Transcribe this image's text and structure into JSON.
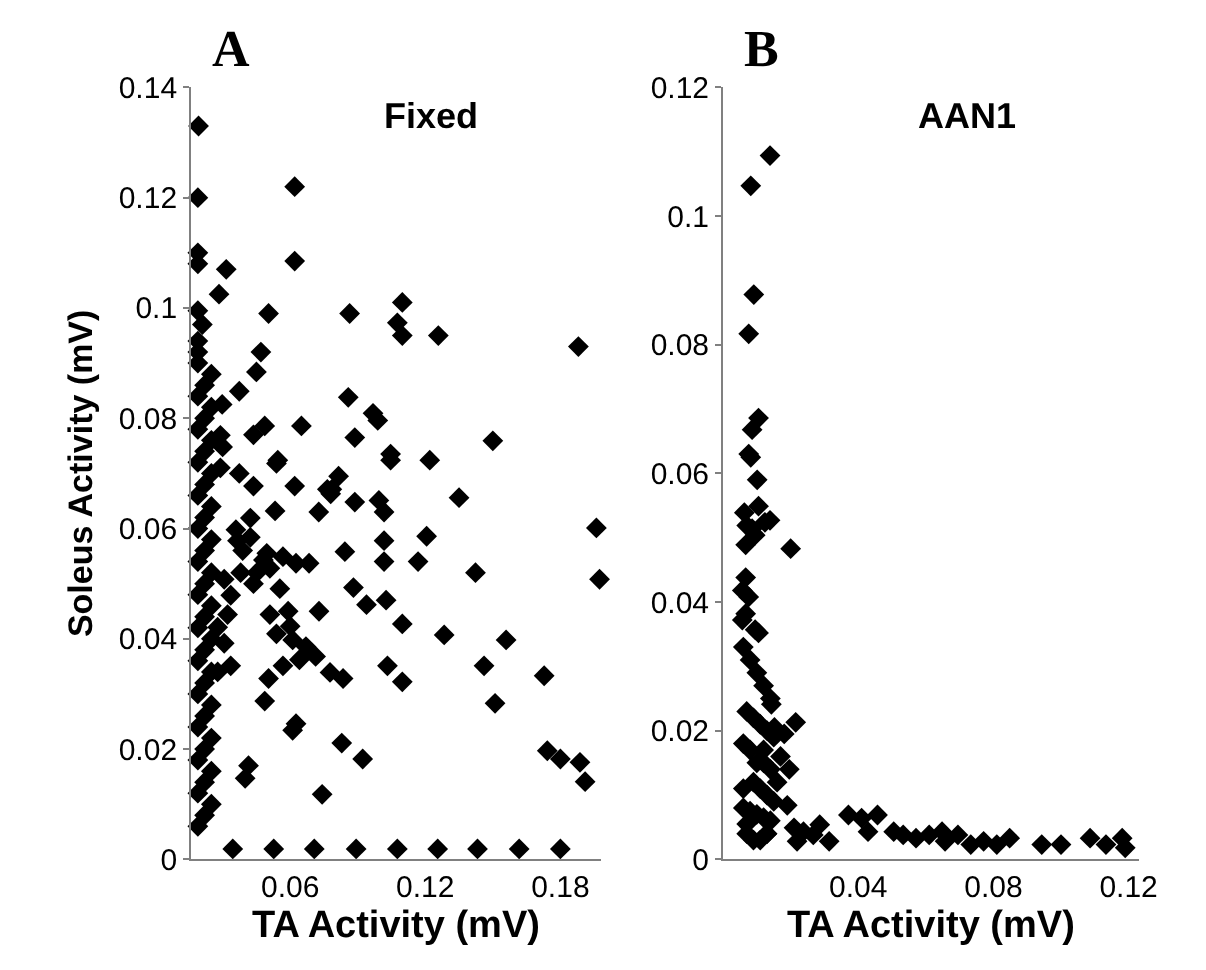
{
  "chart_data": [
    {
      "type": "scatter",
      "title": "Fixed",
      "annotations": [
        "A"
      ],
      "xlabel": "TA Activity (mV)",
      "ylabel": "Soleus Activity (mV)",
      "marker": "diamond",
      "xlim": [
        0.016,
        0.198
      ],
      "xticks": [
        0.06,
        0.12,
        0.18
      ],
      "ylim": [
        0,
        0.14
      ],
      "yticks": [
        0,
        0.02,
        0.04,
        0.06,
        0.08,
        0.1,
        0.12,
        0.14
      ],
      "series": [
        {
          "color": "#000000",
          "x": [
            0.0193,
            0.019,
            0.062,
            0.062,
            0.019,
            0.019,
            0.0316,
            0.0284,
            0.019,
            0.021,
            0.0504,
            0.0864,
            0.1098,
            0.1076,
            0.1098,
            0.1258,
            0.188,
            0.019,
            0.019,
            0.047,
            0.045,
            0.0374,
            0.0298,
            0.0858,
            0.0968,
            0.0989,
            0.065,
            0.0487,
            0.0437,
            0.0887,
            0.15,
            0.1046,
            0.1046,
            0.122,
            0.0545,
            0.062,
            0.0815,
            0.0785,
            0.0374,
            0.029,
            0.03,
            0.029,
            0.0345,
            0.0527,
            0.0707,
            0.0893,
            0.1076,
            0.1255,
            0.1432,
            0.1617,
            0.18,
            0.0539,
            0.0437,
            0.0765,
            0.078,
            0.0727,
            0.0533,
            0.0887,
            0.0994,
            0.1017,
            0.135,
            0.196,
            0.1974,
            0.0423,
            0.0359,
            0.0366,
            0.0843,
            0.1017,
            0.1017,
            0.1206,
            0.1168,
            0.1423,
            0.0496,
            0.0568,
            0.0626,
            0.0684,
            0.0554,
            0.0452,
            0.038,
            0.0437,
            0.051,
            0.0881,
            0.0939,
            0.1026,
            0.1098,
            0.051,
            0.0591,
            0.0728,
            0.0539,
            0.06,
            0.0611,
            0.067,
            0.0713,
            0.0777,
            0.0835,
            0.0641,
            0.0568,
            0.0504,
            0.0487,
            0.0626,
            0.0611,
            0.1032,
            0.1098,
            0.1284,
            0.1461,
            0.1559,
            0.151,
            0.1728,
            0.0829,
            0.0922,
            0.1742,
            0.18,
            0.1887,
            0.191,
            0.0415,
            0.04,
            0.0742,
            0.0481,
            0.0389,
            0.0423,
            0.0307,
            0.0336,
            0.0322,
            0.0278,
            0.0307,
            0.0336,
            0.0278,
            0.019,
            0.022,
            0.025,
            0.019,
            0.022,
            0.025,
            0.019,
            0.022,
            0.025,
            0.019,
            0.022,
            0.025,
            0.019,
            0.022,
            0.025,
            0.019,
            0.022,
            0.025,
            0.019,
            0.022,
            0.025,
            0.019,
            0.022,
            0.025,
            0.019,
            0.022,
            0.025,
            0.019,
            0.022,
            0.025,
            0.019,
            0.022,
            0.025,
            0.019,
            0.022,
            0.025,
            0.019,
            0.022,
            0.025,
            0.019,
            0.022,
            0.025,
            0.019
          ],
          "values": [
            0.133,
            0.12,
            0.122,
            0.1085,
            0.11,
            0.108,
            0.107,
            0.1025,
            0.0995,
            0.097,
            0.099,
            0.099,
            0.101,
            0.0973,
            0.095,
            0.095,
            0.093,
            0.094,
            0.092,
            0.092,
            0.0884,
            0.0849,
            0.0825,
            0.0838,
            0.0809,
            0.0796,
            0.0786,
            0.0786,
            0.077,
            0.0765,
            0.0759,
            0.0735,
            0.0724,
            0.0724,
            0.0724,
            0.0677,
            0.0695,
            0.0671,
            0.07,
            0.0769,
            0.0748,
            0.071,
            0.0019,
            0.0019,
            0.0019,
            0.0019,
            0.0019,
            0.0019,
            0.0019,
            0.0019,
            0.0019,
            0.0718,
            0.0677,
            0.0671,
            0.0663,
            0.063,
            0.0632,
            0.0648,
            0.0651,
            0.063,
            0.0656,
            0.0601,
            0.0508,
            0.0619,
            0.0598,
            0.0578,
            0.0558,
            0.0578,
            0.054,
            0.0586,
            0.054,
            0.052,
            0.0555,
            0.0549,
            0.0537,
            0.0537,
            0.0491,
            0.052,
            0.052,
            0.05,
            0.0528,
            0.0493,
            0.0462,
            0.047,
            0.0427,
            0.0444,
            0.045,
            0.045,
            0.0409,
            0.0423,
            0.0398,
            0.0386,
            0.0368,
            0.0339,
            0.0328,
            0.0362,
            0.0351,
            0.0328,
            0.0287,
            0.0246,
            0.0234,
            0.0351,
            0.0322,
            0.0407,
            0.0351,
            0.0398,
            0.0283,
            0.0333,
            0.0211,
            0.0182,
            0.0197,
            0.0182,
            0.0176,
            0.0141,
            0.017,
            0.0147,
            0.0118,
            0.0543,
            0.056,
            0.0584,
            0.0508,
            0.0479,
            0.0444,
            0.0421,
            0.0392,
            0.0351,
            0.034,
            0.006,
            0.008,
            0.01,
            0.012,
            0.014,
            0.016,
            0.018,
            0.02,
            0.022,
            0.024,
            0.026,
            0.028,
            0.03,
            0.032,
            0.034,
            0.036,
            0.038,
            0.04,
            0.042,
            0.044,
            0.046,
            0.048,
            0.05,
            0.052,
            0.054,
            0.056,
            0.058,
            0.06,
            0.062,
            0.064,
            0.066,
            0.068,
            0.07,
            0.072,
            0.074,
            0.076,
            0.078,
            0.08,
            0.082,
            0.084,
            0.086,
            0.088,
            0.09
          ]
        }
      ]
    },
    {
      "type": "scatter",
      "title": "AAN1",
      "annotations": [
        "B"
      ],
      "xlabel": "TA Activity (mV)",
      "marker": "diamond",
      "xlim": [
        0,
        0.123
      ],
      "xticks": [
        0.04,
        0.08,
        0.12
      ],
      "ylim": [
        0,
        0.12
      ],
      "yticks": [
        0,
        0.02,
        0.04,
        0.06,
        0.08,
        0.1,
        0.12
      ],
      "series": [
        {
          "color": "#000000",
          "x": [
            0.0139,
            0.0082,
            0.0091,
            0.0076,
            0.0105,
            0.0086,
            0.0076,
            0.0101,
            0.0082,
            0.0105,
            0.0063,
            0.007,
            0.0086,
            0.0124,
            0.0139,
            0.0095,
            0.0067,
            0.02,
            0.0067,
            0.0057,
            0.0076,
            0.0067,
            0.0095,
            0.0057,
            0.0105,
            0.0143,
            0.0215,
            0.0152,
            0.0181,
            0.0196,
            0.019,
            0.021,
            0.0219,
            0.0238,
            0.0267,
            0.0286,
            0.0314,
            0.0371,
            0.041,
            0.0429,
            0.0457,
            0.0505,
            0.0533,
            0.0571,
            0.061,
            0.0648,
            0.0657,
            0.0695,
            0.0733,
            0.0771,
            0.081,
            0.0848,
            0.0943,
            0.1,
            0.1086,
            0.1133,
            0.1181,
            0.119,
            0.006,
            0.008,
            0.01,
            0.012,
            0.014,
            0.007,
            0.009,
            0.011,
            0.013,
            0.015,
            0.006,
            0.008,
            0.012,
            0.014,
            0.009,
            0.011,
            0.013,
            0.015,
            0.006,
            0.008,
            0.01,
            0.012,
            0.014,
            0.007,
            0.013,
            0.016,
            0.006,
            0.01,
            0.012,
            0.017,
            0.009,
            0.011,
            0.013,
            0.007
          ],
          "values": [
            0.1094,
            0.1047,
            0.0878,
            0.0817,
            0.0686,
            0.0668,
            0.063,
            0.059,
            0.0625,
            0.0549,
            0.0539,
            0.0519,
            0.0514,
            0.0524,
            0.0527,
            0.0504,
            0.0489,
            0.0483,
            0.0438,
            0.0418,
            0.0408,
            0.0382,
            0.0357,
            0.0372,
            0.0352,
            0.0241,
            0.0213,
            0.0205,
            0.0195,
            0.014,
            0.0084,
            0.0049,
            0.0028,
            0.0043,
            0.0038,
            0.0054,
            0.0028,
            0.0069,
            0.0064,
            0.0043,
            0.0069,
            0.0043,
            0.0038,
            0.0033,
            0.0038,
            0.0043,
            0.0028,
            0.0038,
            0.0023,
            0.0028,
            0.0023,
            0.0033,
            0.0023,
            0.0023,
            0.0033,
            0.0023,
            0.0033,
            0.0018,
            0.033,
            0.031,
            0.029,
            0.027,
            0.025,
            0.023,
            0.022,
            0.021,
            0.02,
            0.019,
            0.018,
            0.017,
            0.015,
            0.014,
            0.012,
            0.011,
            0.01,
            0.009,
            0.008,
            0.0075,
            0.007,
            0.0065,
            0.006,
            0.0055,
            0.004,
            0.012,
            0.011,
            0.015,
            0.017,
            0.016,
            0.003,
            0.003,
            0.004,
            0.004
          ]
        }
      ]
    }
  ]
}
